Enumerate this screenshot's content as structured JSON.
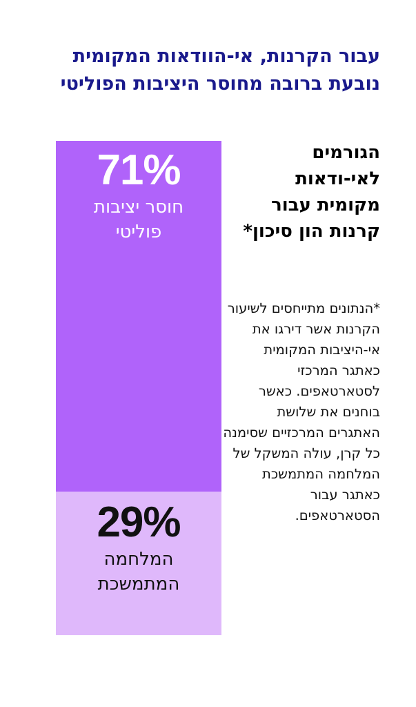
{
  "headline": "עבור הקרנות, אי-הוודאות המקומית נובעת ברובה מחוסר היציבות הפוליטי",
  "subheading": "הגורמים לאי-ודאות מקומית עבור קרנות הון סיכון*",
  "footnote": "*הנתונים מתייחסים לשיעור הקרנות אשר דירגו את אי-היציבות המקומית כאתגר המרכזי לסטארטאפים. כאשר בוחנים את שלושת האתגרים המרכזיים שסימנה כל קרן, עולה המשקל של המלחמה המתמשכת כאתגר עבור הסטארטאפים.",
  "chart_data": {
    "type": "bar",
    "stacked": true,
    "orientation": "vertical",
    "categories": [
      "חוסר יציבות פוליטי",
      "המלחמה המתמשכת"
    ],
    "values": [
      71,
      29
    ],
    "unit": "%",
    "value_labels": [
      "71%",
      "29%"
    ],
    "colors": [
      "#b063fa",
      "#dfb8fb"
    ],
    "label_colors": [
      "#ffffff",
      "#111111"
    ]
  }
}
